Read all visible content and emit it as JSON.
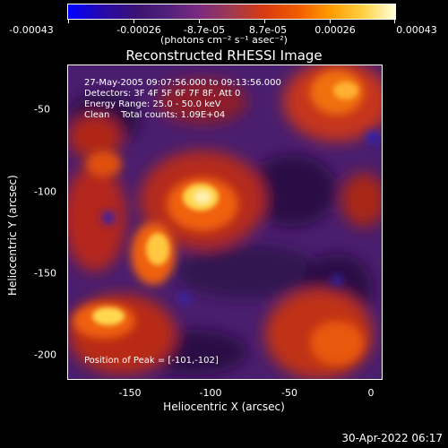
{
  "colorbar": {
    "tick_labels": [
      "-0.00043",
      "-0.00026",
      "-8.7e-05",
      "8.7e-05",
      "0.00026",
      "0.00043"
    ],
    "unit_label": "(photons cm⁻² s⁻¹ asec⁻²)",
    "colors": [
      "#0000ff",
      "#3c1470",
      "#7a2a80",
      "#d83b10",
      "#ff9a00",
      "#ffffd8"
    ]
  },
  "title": "Reconstructed RHESSI Image",
  "info": {
    "time_range": "27-May-2005 09:07:56.000 to 09:13:56.000",
    "detectors": "Detectors: 3F 4F 5F 6F 7F 8F, Att 0",
    "energy": "Energy Range: 25.0 - 50.0 keV",
    "clean": "Clean    Total counts: 1.09E+04"
  },
  "peak_label": "Position of Peak = [-101,-102]",
  "axes": {
    "y_label": "Heliocentric Y (arcsec)",
    "x_label": "Heliocentric X (arcsec)",
    "y_ticks": [
      "-50",
      "-100",
      "-150",
      "-200"
    ],
    "x_ticks": [
      "-150",
      "-100",
      "-50",
      "0"
    ]
  },
  "timestamp": "30-Apr-2022 06:17"
}
